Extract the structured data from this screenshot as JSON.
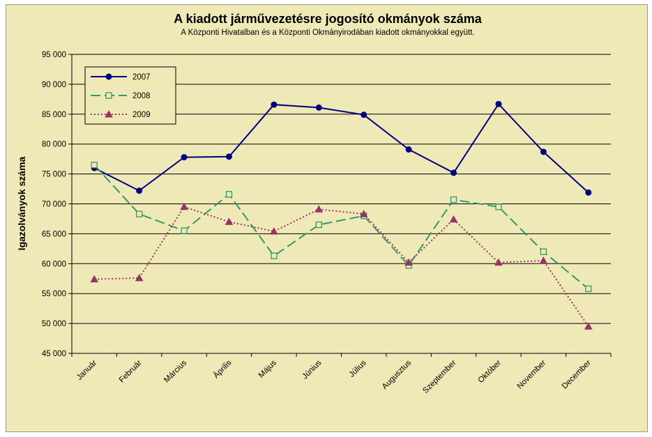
{
  "chart_data": {
    "type": "line",
    "title": "A  kiadott járművezetésre jogosító okmányok száma",
    "subtitle": "A  Központi Hivatalban és a Központi Okmányirodában kiadott okmányokkal együtt.",
    "xlabel": "",
    "ylabel": "Igazolványok száma",
    "ylim": [
      45000,
      95000
    ],
    "ytick_step": 5000,
    "yticks": [
      "45 000",
      "50 000",
      "55 000",
      "60 000",
      "65 000",
      "70 000",
      "75 000",
      "80 000",
      "85 000",
      "90 000",
      "95 000"
    ],
    "grid": true,
    "legend_position": "top-left",
    "categories": [
      "Január",
      "Február",
      "Március",
      "Április",
      "Május",
      "Június",
      "Július",
      "Augusztus",
      "Szeptember",
      "Október",
      "November",
      "December"
    ],
    "series": [
      {
        "name": "2007",
        "color": "#000080",
        "marker": "diamond",
        "dash": "solid",
        "values": [
          76000,
          72200,
          77800,
          77900,
          86600,
          86100,
          84900,
          79100,
          75200,
          86700,
          78700,
          71900
        ]
      },
      {
        "name": "2008",
        "color": "#339966",
        "marker": "square-open",
        "dash": "long-dash",
        "values": [
          76500,
          68300,
          65500,
          71600,
          61300,
          66500,
          68000,
          59700,
          70700,
          69500,
          62000,
          55800
        ]
      },
      {
        "name": "2009",
        "color": "#993366",
        "marker": "triangle",
        "dash": "dotted",
        "values": [
          57400,
          57600,
          69500,
          67000,
          65400,
          69100,
          68300,
          60200,
          67400,
          60200,
          60500,
          49500
        ]
      }
    ]
  }
}
